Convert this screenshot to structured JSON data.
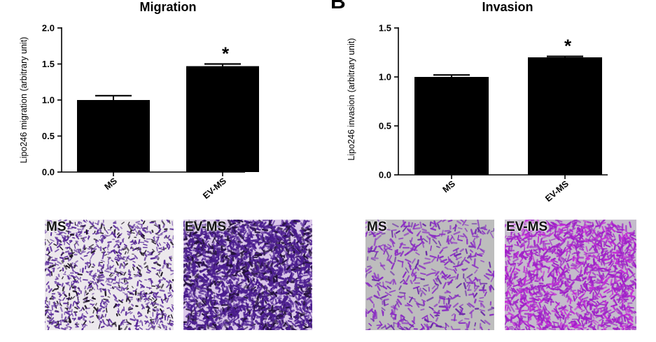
{
  "panel_letter_b": "B",
  "chart_data": [
    {
      "type": "bar",
      "title": "Migration",
      "ylabel": "Lipo246 migration (arbitrary unit)",
      "categories": [
        "MS",
        "EV-MS"
      ],
      "values": [
        1.0,
        1.47
      ],
      "errors": [
        0.06,
        0.03
      ],
      "significance": [
        "",
        "*"
      ],
      "ylim": [
        0,
        2.0
      ],
      "yticks": [
        "0.0",
        "0.5",
        "1.0",
        "1.5",
        "2.0"
      ],
      "bar_color": "#000000",
      "grid": false
    },
    {
      "type": "bar",
      "title": "Invasion",
      "ylabel": "Lipo246 invasion (arbitrary unit)",
      "categories": [
        "MS",
        "EV-MS"
      ],
      "values": [
        1.0,
        1.2
      ],
      "errors": [
        0.02,
        0.01
      ],
      "significance": [
        "",
        "*"
      ],
      "ylim": [
        0,
        1.5
      ],
      "yticks": [
        "0.0",
        "0.5",
        "1.0",
        "1.5"
      ],
      "bar_color": "#000000",
      "grid": false
    }
  ],
  "micrographs": [
    {
      "label": "MS",
      "style": "migration-sparse",
      "dot_color": "#5a2a9a"
    },
    {
      "label": "EV-MS",
      "style": "migration-dense",
      "dot_color": "#4b1d8f"
    },
    {
      "label": "MS",
      "style": "invasion-sparse",
      "dot_color": "#8a2bc4"
    },
    {
      "label": "EV-MS",
      "style": "invasion-dense",
      "dot_color": "#a020c8"
    }
  ]
}
